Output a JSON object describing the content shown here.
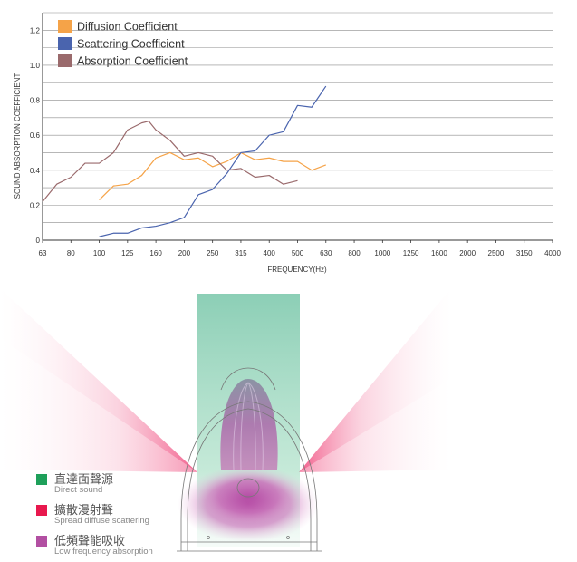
{
  "chart_data": {
    "type": "line",
    "xlabel": "FREQUENCY(Hz)",
    "ylabel": "SOUND ABSORPTION COEFFICIENT",
    "categories": [
      "63",
      "80",
      "100",
      "125",
      "160",
      "200",
      "250",
      "315",
      "400",
      "500",
      "630",
      "800",
      "1000",
      "1250",
      "1600",
      "2000",
      "2500",
      "3150",
      "4000"
    ],
    "yticks": [
      "0",
      "0.2",
      "0.4",
      "0.6",
      "0.8",
      "1.0",
      "1.2"
    ],
    "ylim": [
      0,
      1.3
    ],
    "grid": true,
    "legend_position": "top-left",
    "series": [
      {
        "name": "Diffusion  Coefficient",
        "color": "#f5a348",
        "points": [
          [
            2,
            0.23
          ],
          [
            2.5,
            0.31
          ],
          [
            3,
            0.32
          ],
          [
            3.5,
            0.37
          ],
          [
            4,
            0.47
          ],
          [
            4.5,
            0.5
          ],
          [
            5,
            0.46
          ],
          [
            5.5,
            0.47
          ],
          [
            6,
            0.42
          ],
          [
            6.5,
            0.45
          ],
          [
            7,
            0.5
          ],
          [
            7.5,
            0.46
          ],
          [
            8,
            0.47
          ],
          [
            8.5,
            0.45
          ],
          [
            9,
            0.45
          ],
          [
            9.5,
            0.4
          ],
          [
            10,
            0.43
          ]
        ]
      },
      {
        "name": "Scattering  Coefficient",
        "color": "#4a64ae",
        "points": [
          [
            2,
            0.02
          ],
          [
            2.5,
            0.04
          ],
          [
            3,
            0.04
          ],
          [
            3.5,
            0.07
          ],
          [
            4,
            0.08
          ],
          [
            4.5,
            0.1
          ],
          [
            5,
            0.13
          ],
          [
            5.5,
            0.26
          ],
          [
            6,
            0.29
          ],
          [
            6.5,
            0.38
          ],
          [
            7,
            0.5
          ],
          [
            7.5,
            0.51
          ],
          [
            8,
            0.6
          ],
          [
            8.5,
            0.62
          ],
          [
            9,
            0.77
          ],
          [
            9.5,
            0.76
          ],
          [
            10,
            0.88
          ]
        ]
      },
      {
        "name": "Absorption  Coefficient",
        "color": "#9a6a6c",
        "points": [
          [
            0,
            0.22
          ],
          [
            0.5,
            0.32
          ],
          [
            1,
            0.36
          ],
          [
            1.5,
            0.44
          ],
          [
            2,
            0.44
          ],
          [
            2.5,
            0.5
          ],
          [
            3,
            0.63
          ],
          [
            3.5,
            0.67
          ],
          [
            3.75,
            0.68
          ],
          [
            4,
            0.63
          ],
          [
            4.5,
            0.57
          ],
          [
            5,
            0.48
          ],
          [
            5.5,
            0.5
          ],
          [
            6,
            0.48
          ],
          [
            6.5,
            0.4
          ],
          [
            7,
            0.41
          ],
          [
            7.5,
            0.36
          ],
          [
            8,
            0.37
          ],
          [
            8.5,
            0.32
          ],
          [
            9,
            0.34
          ]
        ]
      }
    ]
  },
  "diagram": {
    "legend": [
      {
        "zh": "直達面聲源",
        "en": "Direct sound",
        "color": "#1ea05a"
      },
      {
        "zh": "擴散漫射聲",
        "en": "Spread diffuse scattering",
        "color": "#e8184e"
      },
      {
        "zh": "低頻聲能吸收",
        "en": "Low frequency absorption",
        "color": "#b24fa2"
      }
    ]
  }
}
